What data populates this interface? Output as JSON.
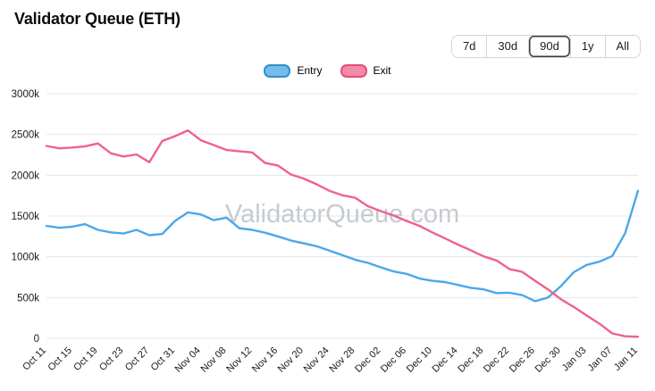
{
  "header": {
    "title": "Validator Queue (ETH)"
  },
  "ranges": {
    "options": [
      "7d",
      "30d",
      "90d",
      "1y",
      "All"
    ],
    "selected": "90d"
  },
  "legend": {
    "entry_label": "Entry",
    "exit_label": "Exit"
  },
  "watermark": "ValidatorQueue.com",
  "colors": {
    "entry_line": "#4da7e8",
    "exit_line": "#f0618d",
    "grid": "#e7e7e9",
    "axis_text": "#1a1a1a",
    "watermark": "#c6cbd1"
  },
  "chart_data": {
    "type": "line",
    "title": "Validator Queue (ETH)",
    "x_tick_labels": [
      "Oct 11",
      "Oct 15",
      "Oct 19",
      "Oct 23",
      "Oct 27",
      "Oct 31",
      "Nov 04",
      "Nov 08",
      "Nov 12",
      "Nov 16",
      "Nov 20",
      "Nov 24",
      "Nov 28",
      "Dec 02",
      "Dec 06",
      "Dec 10",
      "Dec 14",
      "Dec 18",
      "Dec 22",
      "Dec 26",
      "Dec 30",
      "Jan 03",
      "Jan 07",
      "Jan 11"
    ],
    "tick_every": 2,
    "ylim_k": [
      0,
      3000
    ],
    "y_tick_values_k": [
      0,
      500,
      1000,
      1500,
      2000,
      2500,
      3000
    ],
    "y_tick_labels": [
      "0",
      "500k",
      "1000k",
      "1500k",
      "2000k",
      "2500k",
      "3000k"
    ],
    "legend_position": "top-center",
    "grid": "horizontal",
    "series": [
      {
        "name": "Entry",
        "color": "#4da7e8",
        "swatch_fill": "#74bce9",
        "swatch_stroke": "#2f8fd2",
        "values_k": [
          1380,
          1355,
          1370,
          1400,
          1330,
          1300,
          1285,
          1330,
          1265,
          1280,
          1440,
          1545,
          1520,
          1450,
          1480,
          1350,
          1330,
          1295,
          1250,
          1200,
          1165,
          1130,
          1075,
          1020,
          965,
          925,
          870,
          820,
          790,
          735,
          705,
          690,
          655,
          620,
          600,
          555,
          560,
          530,
          455,
          500,
          640,
          810,
          900,
          940,
          1010,
          1290,
          1810
        ]
      },
      {
        "name": "Exit",
        "color": "#f0618d",
        "swatch_fill": "#f489a8",
        "swatch_stroke": "#e54a76",
        "values_k": [
          2360,
          2330,
          2340,
          2355,
          2390,
          2270,
          2230,
          2255,
          2160,
          2420,
          2480,
          2550,
          2430,
          2370,
          2310,
          2295,
          2280,
          2150,
          2120,
          2010,
          1960,
          1890,
          1810,
          1755,
          1725,
          1620,
          1560,
          1505,
          1440,
          1380,
          1300,
          1225,
          1150,
          1080,
          1005,
          955,
          850,
          815,
          705,
          600,
          480,
          385,
          280,
          180,
          60,
          25,
          20
        ]
      }
    ]
  }
}
